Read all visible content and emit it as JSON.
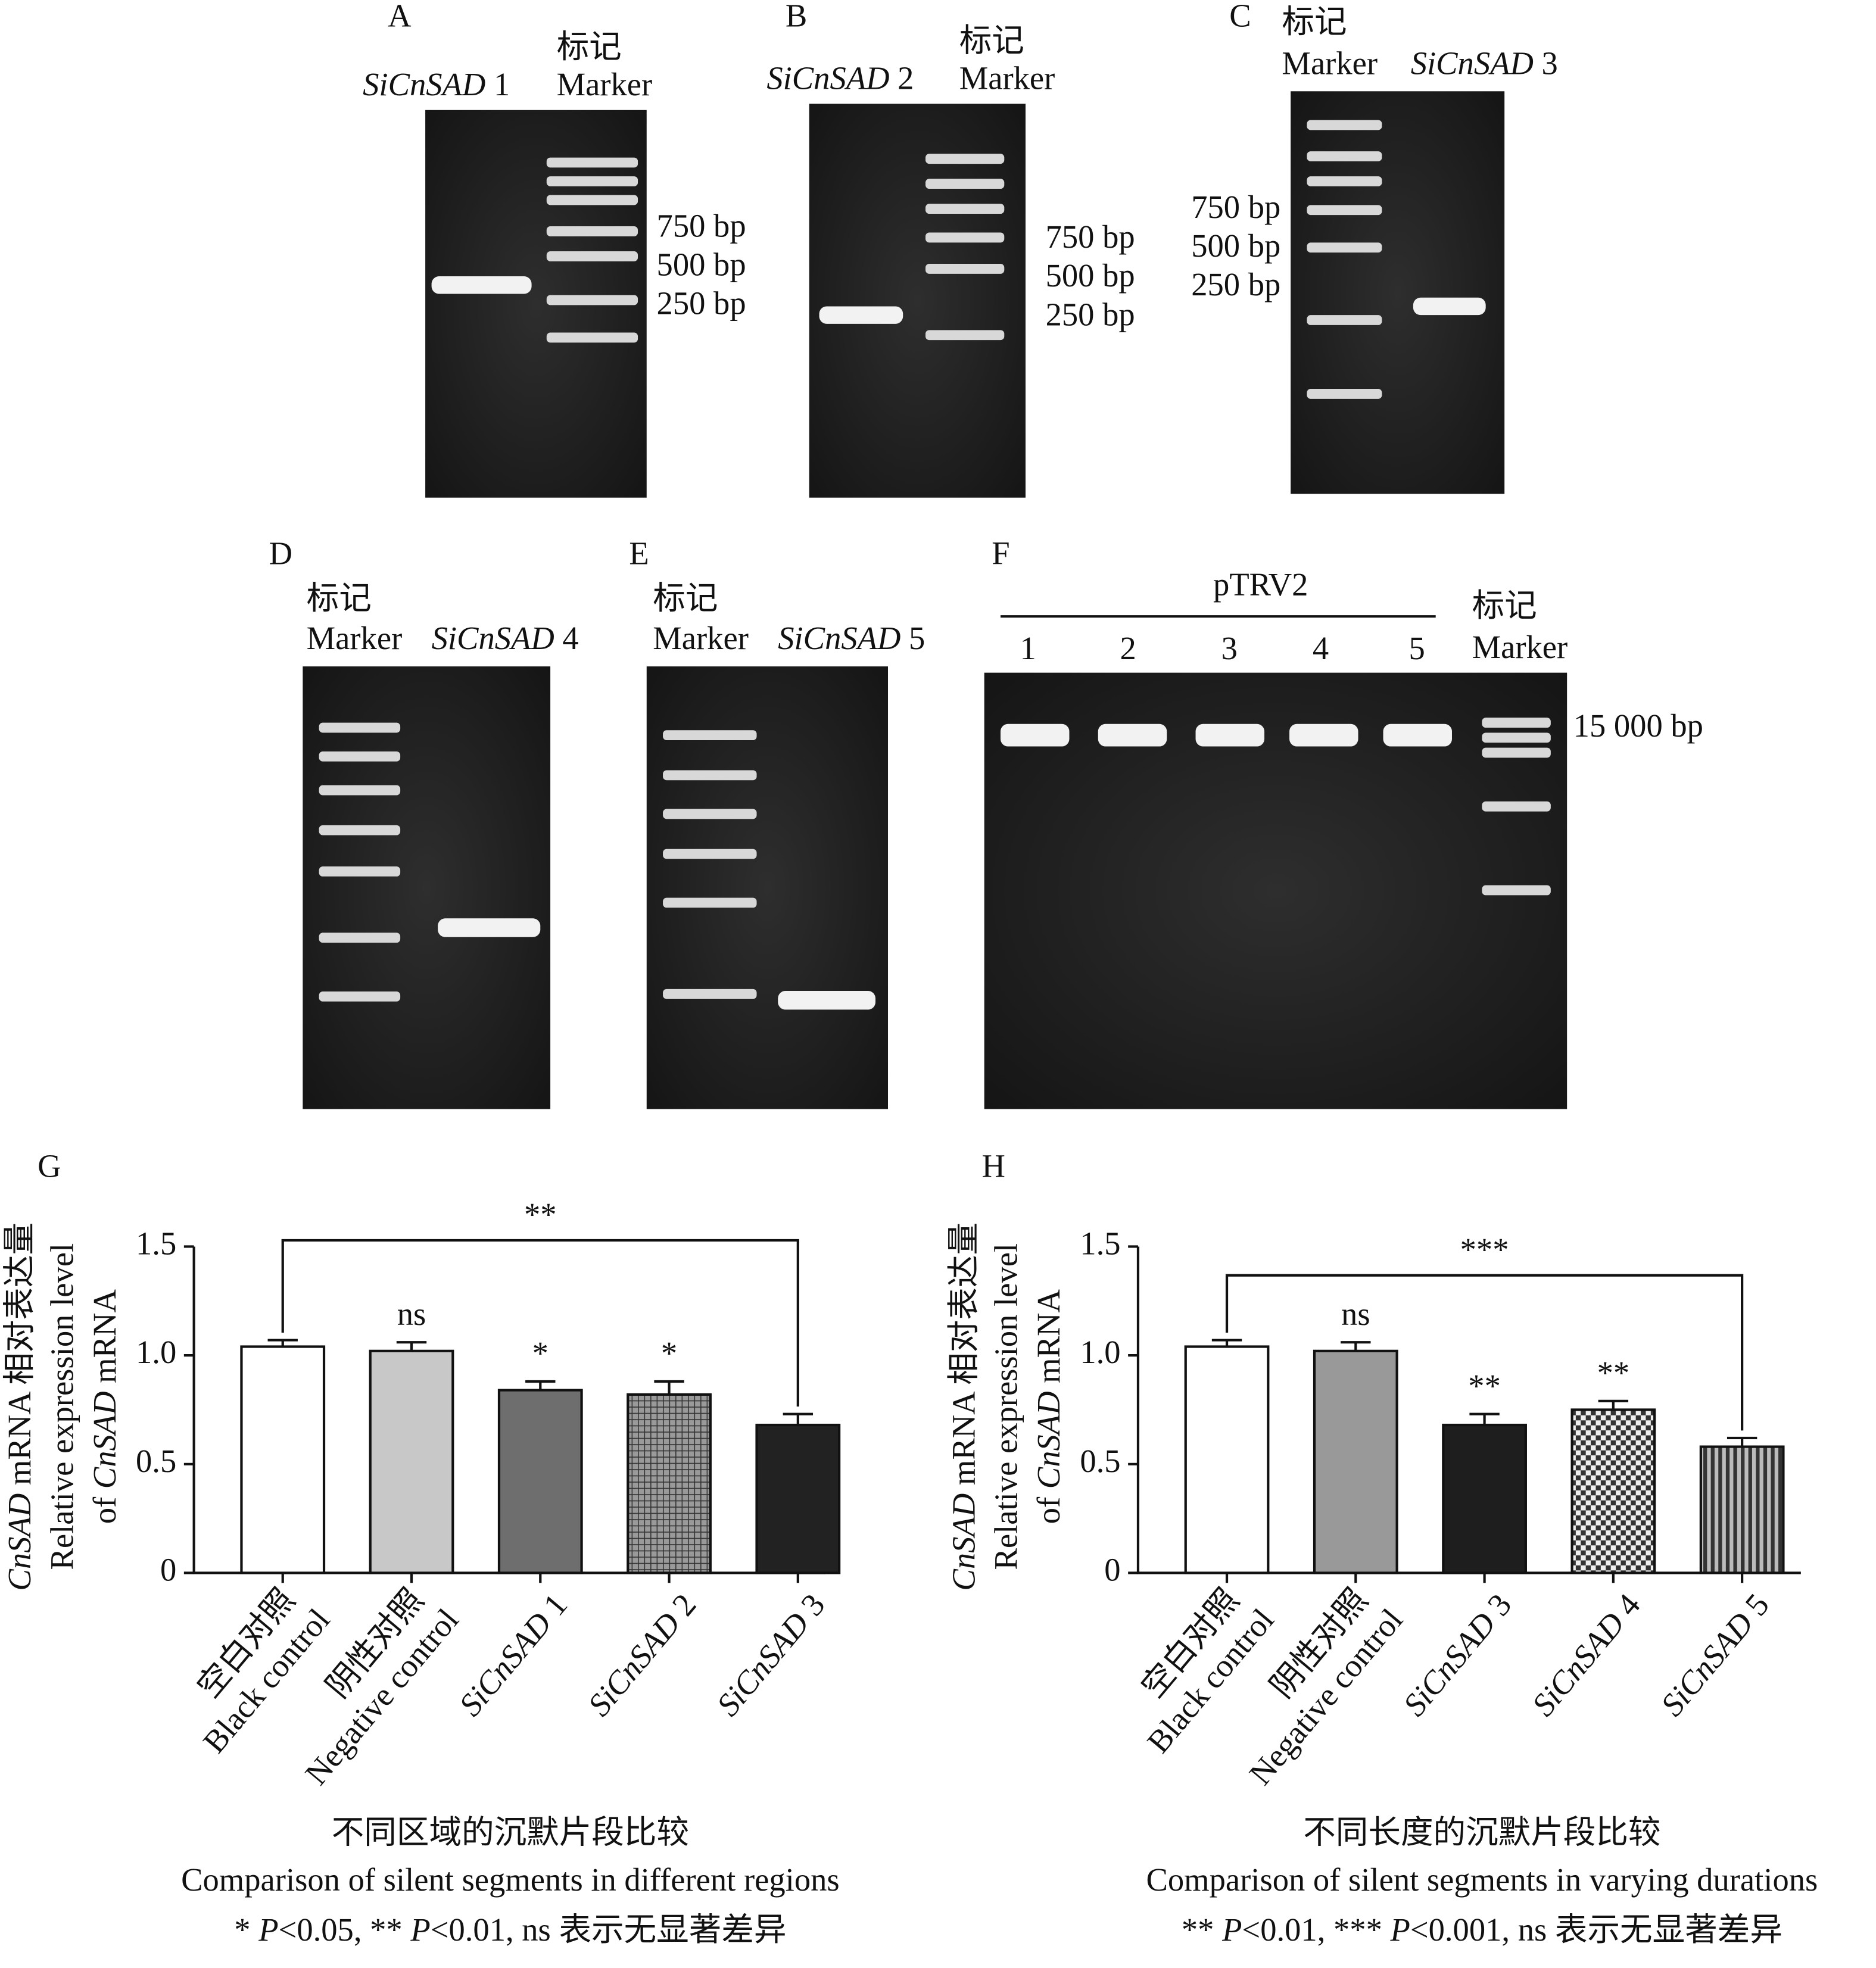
{
  "gels": [
    {
      "label": "A",
      "lanes": [
        "SiCnSAD 1"
      ],
      "marker": [
        "标记",
        "Marker"
      ],
      "sizes": [
        "750 bp",
        "500 bp",
        "250 bp"
      ]
    },
    {
      "label": "B",
      "lanes": [
        "SiCnSAD 2"
      ],
      "marker": [
        "标记",
        "Marker"
      ],
      "sizes": [
        "750 bp",
        "500 bp",
        "250 bp"
      ]
    },
    {
      "label": "C",
      "lanes": [
        "SiCnSAD 3"
      ],
      "marker": [
        "标记",
        "Marker"
      ],
      "sizes": [
        "750 bp",
        "500 bp",
        "250 bp"
      ]
    },
    {
      "label": "D",
      "lanes": [
        "SiCnSAD 4"
      ],
      "marker": [
        "标记",
        "Marker"
      ]
    },
    {
      "label": "E",
      "lanes": [
        "SiCnSAD 5"
      ],
      "marker": [
        "标记",
        "Marker"
      ]
    },
    {
      "label": "F",
      "group": "pTRV2",
      "lanes": [
        "1",
        "2",
        "3",
        "4",
        "5"
      ],
      "marker": [
        "标记",
        "Marker"
      ],
      "sizes": [
        "15 000 bp"
      ]
    }
  ],
  "chart_data": [
    {
      "type": "bar",
      "panel": "G",
      "ylabel": [
        "CnSAD mRNA 相对表达量",
        "Relative expression level",
        "of CnSAD mRNA"
      ],
      "category_zh": [
        "空白对照",
        "阴性对照",
        null,
        null,
        null
      ],
      "categories": [
        "Black control",
        "Negative control",
        "SiCnSAD 1",
        "SiCnSAD 2",
        "SiCnSAD 3"
      ],
      "values": [
        1.04,
        1.02,
        0.84,
        0.82,
        0.68
      ],
      "errors": [
        0.03,
        0.04,
        0.04,
        0.06,
        0.05
      ],
      "significance": [
        null,
        "ns",
        "*",
        "*",
        null
      ],
      "bracket_label": "**",
      "colors": [
        "#ffffff",
        "#c8c8c8",
        "#6e6e6e",
        "#555555",
        "#222222"
      ],
      "patterns": [
        null,
        null,
        null,
        "crosshatch",
        null
      ],
      "ylim": [
        0,
        1.5
      ],
      "yticks": [
        0,
        0.5,
        {
          "value": 1,
          "label": "1.0"
        },
        1.5
      ],
      "title": "不同区域的沉默片段比较",
      "subtitle": "Comparison of silent segments in different regions",
      "note": "* P<0.05, ** P<0.01, ns 表示无显著差异"
    },
    {
      "type": "bar",
      "panel": "H",
      "ylabel": [
        "CnSAD mRNA 相对表达量",
        "Relative expression level",
        "of CnSAD mRNA"
      ],
      "category_zh": [
        "空白对照",
        "阴性对照",
        null,
        null,
        null
      ],
      "categories": [
        "Black control",
        "Negative control",
        "SiCnSAD 3",
        "SiCnSAD 4",
        "SiCnSAD 5"
      ],
      "values": [
        1.04,
        1.02,
        0.68,
        0.75,
        0.58
      ],
      "errors": [
        0.03,
        0.04,
        0.05,
        0.04,
        0.04
      ],
      "significance": [
        null,
        "ns",
        "**",
        "**",
        null
      ],
      "bracket_label": "***",
      "colors": [
        "#ffffff",
        "#999999",
        "#1e1e1e",
        "#888888",
        "#555555"
      ],
      "patterns": [
        null,
        null,
        null,
        "checker",
        "stripes"
      ],
      "ylim": [
        0,
        1.5
      ],
      "yticks": [
        0,
        0.5,
        {
          "value": 1,
          "label": "1.0"
        },
        1.5
      ],
      "title": "不同长度的沉默片段比较",
      "subtitle": "Comparison of silent segments in varying durations",
      "note": "** P<0.01, *** P<0.001, ns 表示无显著差异"
    }
  ]
}
